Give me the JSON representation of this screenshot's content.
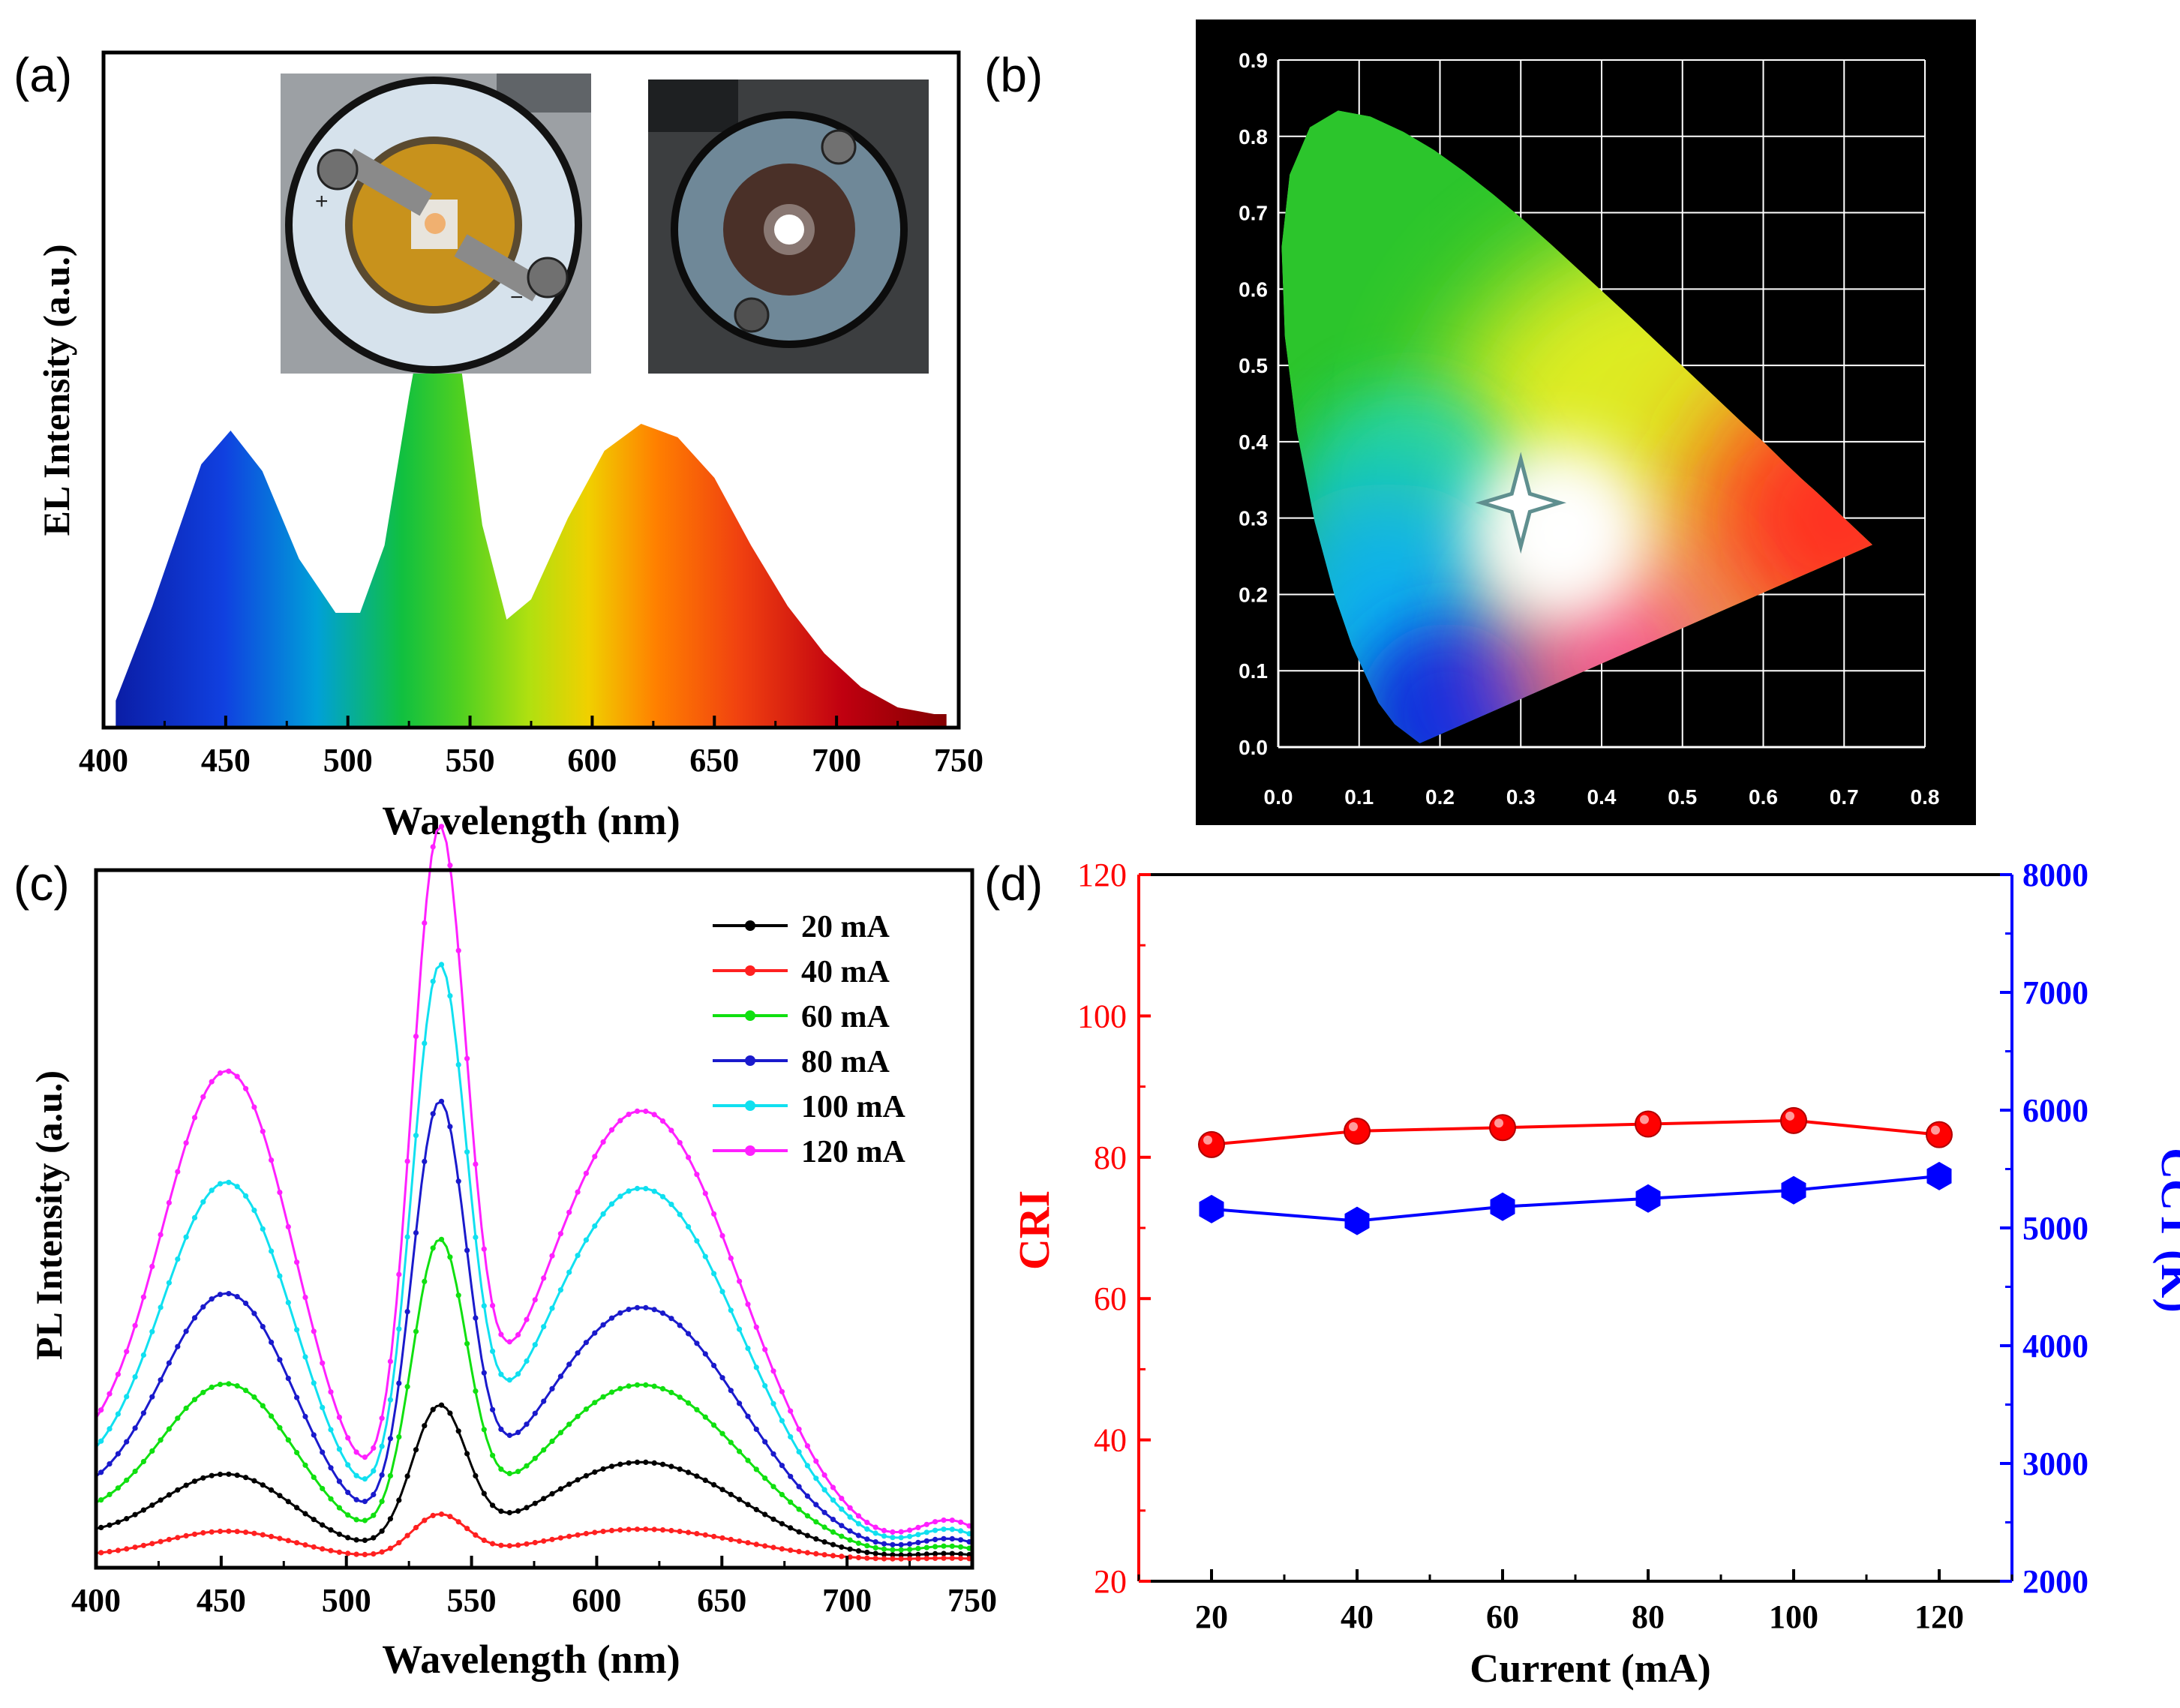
{
  "panels": {
    "a": {
      "label": "(a)"
    },
    "b": {
      "label": "(b)"
    },
    "c": {
      "label": "(c)"
    },
    "d": {
      "label": "(d)"
    }
  },
  "chart_data": [
    {
      "id": "a",
      "type": "area",
      "xlabel": "Wavelength (nm)",
      "ylabel": "EL Intensity (a.u.)",
      "xlim": [
        400,
        750
      ],
      "ylim": [
        0,
        1
      ],
      "xticks": [
        "400",
        "450",
        "500",
        "550",
        "600",
        "650",
        "700",
        "750"
      ],
      "fill": "visible spectrum colour gradient",
      "series": [
        {
          "name": "EL spectrum",
          "x": [
            405,
            420,
            440,
            452,
            465,
            480,
            495,
            505,
            515,
            525,
            532,
            537,
            545,
            555,
            565,
            575,
            590,
            605,
            620,
            635,
            650,
            665,
            680,
            695,
            710,
            725,
            740,
            745
          ],
          "y": [
            0.04,
            0.18,
            0.39,
            0.44,
            0.38,
            0.25,
            0.17,
            0.17,
            0.27,
            0.49,
            0.63,
            0.67,
            0.57,
            0.3,
            0.16,
            0.19,
            0.31,
            0.41,
            0.45,
            0.43,
            0.37,
            0.27,
            0.18,
            0.11,
            0.06,
            0.03,
            0.02,
            0.02
          ]
        }
      ],
      "insets": [
        "LED device off (photo)",
        "LED device on (photo)"
      ]
    },
    {
      "id": "b",
      "type": "scatter",
      "background": "CIE 1931 chromaticity diagram",
      "xlim": [
        0.0,
        0.8
      ],
      "ylim": [
        0.0,
        0.9
      ],
      "xticks": [
        "0.0",
        "0.1",
        "0.2",
        "0.3",
        "0.4",
        "0.5",
        "0.6",
        "0.7",
        "0.8"
      ],
      "yticks": [
        "0.0",
        "0.1",
        "0.2",
        "0.3",
        "0.4",
        "0.5",
        "0.6",
        "0.7",
        "0.8",
        "0.9"
      ],
      "grid": true,
      "points": [
        {
          "x": 0.3,
          "y": 0.32,
          "marker": "star"
        }
      ]
    },
    {
      "id": "c",
      "type": "line",
      "xlabel": "Wavelength (nm)",
      "ylabel": "PL Intensity (a.u.)",
      "xlim": [
        400,
        750
      ],
      "ylim": [
        0,
        1
      ],
      "xticks": [
        "400",
        "450",
        "500",
        "550",
        "600",
        "650",
        "700",
        "750"
      ],
      "legend": "top-right",
      "series": [
        {
          "name": "20 mA",
          "color": "#000000",
          "params": {
            "b": 0.11,
            "g": 0.2,
            "r": 0.14,
            "base": 0.03
          }
        },
        {
          "name": "40 mA",
          "color": "#ff2020",
          "params": {
            "b": 0.04,
            "g": 0.06,
            "r": 0.045,
            "base": 0.005
          }
        },
        {
          "name": "60 mA",
          "color": "#10e010",
          "params": {
            "b": 0.23,
            "g": 0.42,
            "r": 0.25,
            "base": 0.05
          }
        },
        {
          "name": "80 mA",
          "color": "#1a1acc",
          "params": {
            "b": 0.35,
            "g": 0.6,
            "r": 0.36,
            "base": 0.07
          }
        },
        {
          "name": "100 mA",
          "color": "#10e0f0",
          "params": {
            "b": 0.5,
            "g": 0.77,
            "r": 0.53,
            "base": 0.09
          }
        },
        {
          "name": "120 mA",
          "color": "#ff20ff",
          "params": {
            "b": 0.65,
            "g": 0.95,
            "r": 0.64,
            "base": 0.11
          }
        }
      ]
    },
    {
      "id": "d",
      "type": "line",
      "xlabel": "Current (mA)",
      "x": [
        20,
        40,
        60,
        80,
        100,
        120
      ],
      "xticks": [
        "20",
        "40",
        "60",
        "80",
        "100",
        "120"
      ],
      "xlim": [
        10,
        130
      ],
      "series": [
        {
          "name": "CRI",
          "axis": "left",
          "color": "#ff0000",
          "marker": "circle",
          "values": [
            81.8,
            83.7,
            84.2,
            84.7,
            85.2,
            83.2
          ]
        },
        {
          "name": "CCT (K)",
          "axis": "right",
          "color": "#0000ff",
          "marker": "hexagon",
          "values": [
            5160,
            5060,
            5180,
            5250,
            5320,
            5440
          ]
        }
      ],
      "yleft": {
        "label": "CRI",
        "lim": [
          20,
          120
        ],
        "ticks": [
          "20",
          "40",
          "60",
          "80",
          "100",
          "120"
        ]
      },
      "yright": {
        "label": "CCT (K)",
        "lim": [
          2000,
          8000
        ],
        "ticks": [
          "2000",
          "3000",
          "4000",
          "5000",
          "6000",
          "7000",
          "8000"
        ]
      }
    }
  ]
}
